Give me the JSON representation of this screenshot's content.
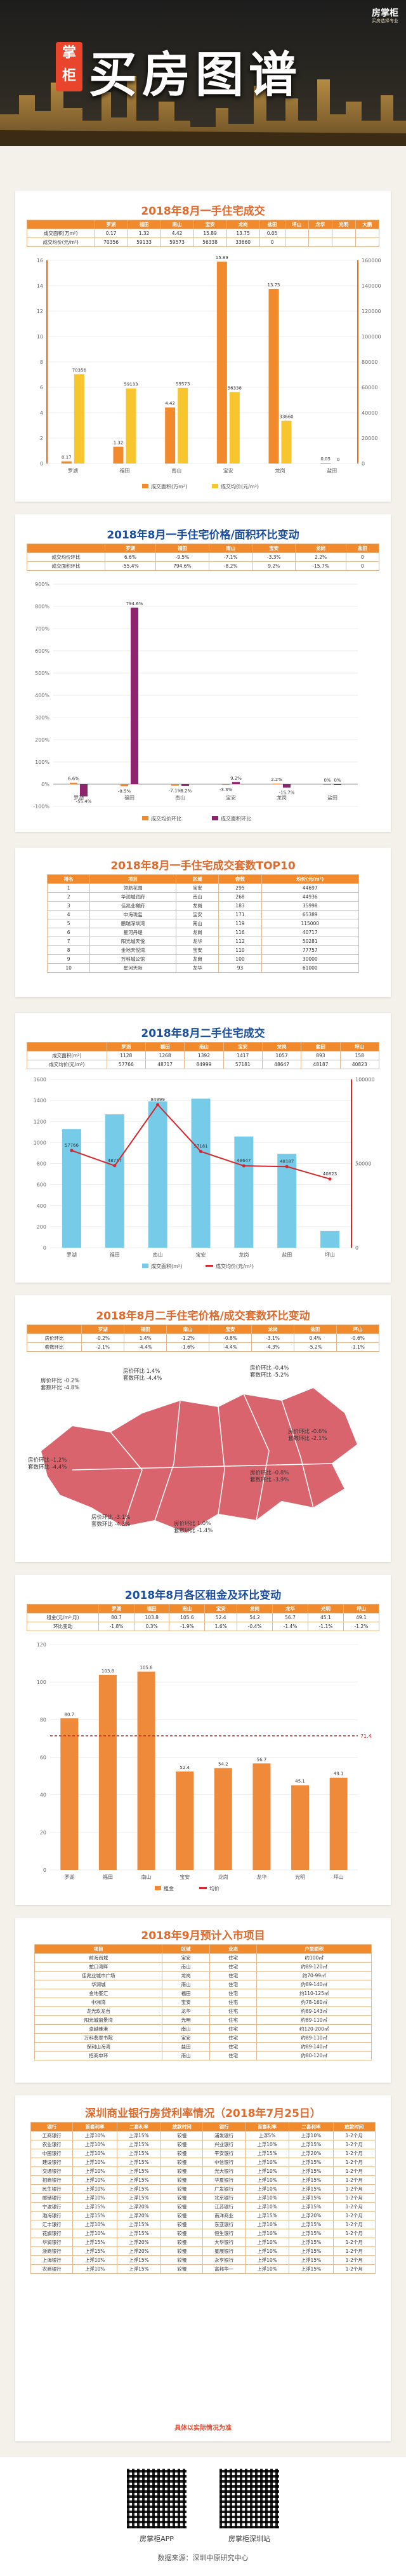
{
  "header": {
    "brand": "房掌柜",
    "tagline": "买房选择专业",
    "seal": "掌柜",
    "title": "买房图谱"
  },
  "s1": {
    "title": "2018年8月一手住宅成交",
    "columns": [
      "",
      "罗湖",
      "福田",
      "南山",
      "宝安",
      "龙岗",
      "盐田",
      "坪山",
      "龙华",
      "光明",
      "大鹏"
    ],
    "rows": [
      [
        "成交面积(万m²)",
        "0.17",
        "1.32",
        "4.42",
        "15.89",
        "13.75",
        "0.05",
        "",
        "",
        "",
        ""
      ],
      [
        "成交均价(元/m²)",
        "70356",
        "59133",
        "59573",
        "56338",
        "33660",
        "0",
        "",
        "",
        "",
        ""
      ]
    ]
  },
  "chart_data": [
    {
      "type": "bar",
      "title": "2018年8月一手住宅成交",
      "categories": [
        "罗湖",
        "福田",
        "南山",
        "宝安",
        "龙岗",
        "盐田"
      ],
      "series": [
        {
          "name": "成交面积(万m²)",
          "values": [
            0.17,
            1.32,
            4.42,
            15.89,
            13.75,
            0.05
          ]
        },
        {
          "name": "成交均价(元/m²)",
          "values": [
            70356,
            59133,
            59573,
            56338,
            33660,
            0
          ]
        }
      ],
      "ylim_left": [
        0,
        16
      ],
      "ylim_right": [
        0,
        160000
      ],
      "legend": "bottom"
    },
    {
      "type": "bar",
      "title": "2018年8月一手住宅价格/面积环比变动",
      "categories": [
        "罗湖",
        "福田",
        "南山",
        "宝安",
        "龙岗",
        "盐田"
      ],
      "series": [
        {
          "name": "成交均价环比",
          "values": [
            6.6,
            -9.5,
            -7.1,
            -3.3,
            2.2,
            0
          ]
        },
        {
          "name": "成交面积环比",
          "values": [
            -55.4,
            794.6,
            -8.2,
            9.2,
            -15.7,
            0
          ]
        }
      ],
      "ylim": [
        -100,
        900
      ],
      "legend": "bottom"
    },
    {
      "type": "bar",
      "title": "2018年8月二手住宅成交",
      "categories": [
        "罗湖",
        "福田",
        "南山",
        "宝安",
        "龙岗",
        "盐田",
        "坪山"
      ],
      "series": [
        {
          "name": "成交面积(m²)",
          "values": [
            1128,
            1268,
            1392,
            1417,
            1057,
            893,
            158
          ]
        },
        {
          "name": "成交均价(元/m²)",
          "values": [
            57766,
            48717,
            84999,
            57181,
            48647,
            48187,
            40823
          ]
        }
      ],
      "ylim_left": [
        0,
        1600
      ],
      "ylim_right": [
        0,
        100000
      ],
      "legend": "bottom"
    },
    {
      "type": "bar",
      "title": "2018年8月各区租金及环比变动",
      "categories": [
        "罗湖",
        "福田",
        "南山",
        "宝安",
        "龙岗",
        "龙华",
        "光明",
        "坪山"
      ],
      "series": [
        {
          "name": "租金(元/m²·月)",
          "values": [
            80.7,
            103.8,
            105.6,
            52.4,
            54.2,
            56.7,
            45.1,
            49.1
          ]
        },
        {
          "name": "均价",
          "values": [
            71.4,
            71.4,
            71.4,
            71.4,
            71.4,
            71.4,
            71.4,
            71.4
          ]
        }
      ],
      "ylim": [
        0,
        120
      ],
      "legend": "bottom"
    }
  ],
  "s1legend": [
    "成交面积(万m²)",
    "成交均价(元/m²)"
  ],
  "s2": {
    "title": "2018年8月一手住宅价格/面积环比变动",
    "rows": [
      [
        "成交均价环比",
        "6.6%",
        "-9.5%",
        "-7.1%",
        "-3.3%",
        "2.2%",
        "0"
      ],
      [
        "成交面积环比",
        "-55.4%",
        "794.6%",
        "-8.2%",
        "9.2%",
        "-15.7%",
        "0"
      ]
    ],
    "labels": [
      "6.6%",
      "-55.4%",
      "794.6%",
      "-9.5%",
      "-7.1%",
      "-8.2%",
      "-3.3%",
      "9.2%",
      "2.2%",
      "-15.7%"
    ],
    "legend": [
      "成交均价环比",
      "成交面积环比"
    ]
  },
  "s3": {
    "title": "2018年8月一手住宅成交套数TOP10",
    "head": [
      "排名",
      "项目",
      "区域",
      "套数",
      "均价(元/m²)"
    ],
    "rows": [
      [
        "1",
        "领航花园",
        "宝安",
        "295",
        "44697"
      ],
      [
        "2",
        "华润城润府",
        "南山",
        "268",
        "44936"
      ],
      [
        "3",
        "佳兆业樾府",
        "龙岗",
        "183",
        "35998"
      ],
      [
        "4",
        "中海珑玺",
        "宝安",
        "171",
        "65389"
      ],
      [
        "5",
        "鹏瑞深圳湾",
        "南山",
        "119",
        "115000"
      ],
      [
        "6",
        "星河丹堤",
        "龙岗",
        "116",
        "40717"
      ],
      [
        "7",
        "阳光城天悦",
        "龙华",
        "112",
        "50281"
      ],
      [
        "8",
        "金地天悦湾",
        "宝安",
        "110",
        "77757"
      ],
      [
        "9",
        "万科城公馆",
        "龙岗",
        "100",
        "30000"
      ],
      [
        "10",
        "星河天际",
        "龙华",
        "93",
        "61000"
      ]
    ]
  },
  "s4": {
    "title": "2018年8月二手住宅成交",
    "rows": [
      [
        "成交面积(m²)",
        "1128",
        "1268",
        "1392",
        "1417",
        "1057",
        "893",
        "158"
      ],
      [
        "成交均价(元/m²)",
        "57766",
        "48717",
        "84999",
        "57181",
        "48647",
        "48187",
        "40823"
      ]
    ],
    "labels": [
      "57766",
      "48717",
      "84999",
      "57181",
      "48647",
      "48187",
      "40823"
    ],
    "legend": [
      "成交面积(m²)",
      "成交均价(元/m²)"
    ]
  },
  "s5": {
    "title": "2018年8月二手住宅价格/成交套数环比变动",
    "rows": [
      [
        "房价环比",
        "-0.2%",
        "1.4%",
        "-1.2%",
        "-0.8%",
        "-3.1%",
        "0.4%",
        "-0.6%"
      ],
      [
        "套数环比",
        "-2.1%",
        "-4.4%",
        "-1.6%",
        "-4.4%",
        "-4.3%",
        "-5.2%",
        "-1.1%"
      ]
    ],
    "callouts": [
      "房价环比 -0.2%\n套数环比 -4.8%",
      "房价环比 1.4%\n套数环比 -4.4%",
      "房价环比 -0.4%\n套数环比 -5.2%",
      "房价环比 -1.2%\n套数环比 -4.4%",
      "房价环比 -0.8%\n套数环比 -3.9%",
      "房价环比 -0.6%\n套数环比 -2.1%",
      "房价环比 -3.1%\n套数环比 -4.3%",
      "房价环比 1.0%\n套数环比 -1.4%"
    ]
  },
  "s6": {
    "title": "2018年8月各区租金及环比变动",
    "rows": [
      [
        "租金(元/m²·月)",
        "80.7",
        "103.8",
        "105.6",
        "52.4",
        "54.2",
        "56.7",
        "45.1",
        "49.1"
      ],
      [
        "环比变动",
        "-1.8%",
        "0.3%",
        "-1.9%",
        "1.6%",
        "-0.4%",
        "-1.4%",
        "-1.1%",
        "-1.2%"
      ]
    ],
    "avg": "71.4",
    "legend": [
      "租金",
      "均价"
    ]
  },
  "s7": {
    "title": "2018年9月预计入市项目",
    "head": [
      "项目",
      "区域",
      "业态",
      "户型面积"
    ],
    "rows": [
      [
        "前海尚城",
        "宝安",
        "住宅",
        "约100㎡"
      ],
      [
        "蛇口湾畔",
        "南山",
        "住宅",
        "约89-120㎡"
      ],
      [
        "佳兆业城市广场",
        "龙岗",
        "住宅",
        "约70-99㎡"
      ],
      [
        "华润城",
        "南山",
        "住宅",
        "约89-140㎡"
      ],
      [
        "金地峯汇",
        "福田",
        "住宅",
        "约110-125㎡"
      ],
      [
        "中洲湾",
        "宝安",
        "住宅",
        "约78-160㎡"
      ],
      [
        "龙光玖龙台",
        "龙华",
        "住宅",
        "约89-143㎡"
      ],
      [
        "阳光城丽景湾",
        "光明",
        "住宅",
        "约89-110㎡"
      ],
      [
        "卓越维港",
        "南山",
        "住宅",
        "约120-200㎡"
      ],
      [
        "万科翡翠书院",
        "宝安",
        "住宅",
        "约89-110㎡"
      ],
      [
        "保利山海湾",
        "盐田",
        "住宅",
        "约89-140㎡"
      ],
      [
        "招商中环",
        "南山",
        "住宅",
        "约80-120㎡"
      ]
    ]
  },
  "s8": {
    "title": "深圳商业银行房贷利率情况（2018年7月25日）",
    "head": [
      "银行",
      "首套利率",
      "二套利率",
      "放款时间",
      "银行",
      "首套利率",
      "二套利率",
      "放款时间"
    ],
    "rows": [
      [
        "工商银行",
        "上浮10%",
        "上浮15%",
        "较慢",
        "浦发银行",
        "上浮5%",
        "上浮10%",
        "1-2个月"
      ],
      [
        "农业银行",
        "上浮10%",
        "上浮15%",
        "较慢",
        "兴业银行",
        "上浮10%",
        "上浮15%",
        "1-2个月"
      ],
      [
        "中国银行",
        "上浮10%",
        "上浮15%",
        "较慢",
        "平安银行",
        "上浮15%",
        "上浮20%",
        "1-2个月"
      ],
      [
        "建设银行",
        "上浮10%",
        "上浮15%",
        "较慢",
        "中信银行",
        "上浮10%",
        "上浮15%",
        "1-2个月"
      ],
      [
        "交通银行",
        "上浮10%",
        "上浮15%",
        "较慢",
        "光大银行",
        "上浮10%",
        "上浮15%",
        "1-2个月"
      ],
      [
        "招商银行",
        "上浮10%",
        "上浮15%",
        "较慢",
        "华夏银行",
        "上浮10%",
        "上浮15%",
        "1-2个月"
      ],
      [
        "民生银行",
        "上浮10%",
        "上浮15%",
        "较慢",
        "广发银行",
        "上浮10%",
        "上浮15%",
        "1-2个月"
      ],
      [
        "邮储银行",
        "上浮10%",
        "上浮15%",
        "较慢",
        "北京银行",
        "上浮10%",
        "上浮15%",
        "1-2个月"
      ],
      [
        "宁波银行",
        "上浮15%",
        "上浮20%",
        "较慢",
        "江苏银行",
        "上浮10%",
        "上浮15%",
        "1-2个月"
      ],
      [
        "渤海银行",
        "上浮15%",
        "上浮20%",
        "较慢",
        "南洋商业",
        "上浮15%",
        "上浮20%",
        "1-2个月"
      ],
      [
        "汇丰银行",
        "上浮10%",
        "上浮15%",
        "较慢",
        "东亚银行",
        "上浮10%",
        "上浮15%",
        "1-2个月"
      ],
      [
        "花旗银行",
        "上浮10%",
        "上浮15%",
        "较慢",
        "恒生银行",
        "上浮10%",
        "上浮15%",
        "1-2个月"
      ],
      [
        "华润银行",
        "上浮15%",
        "上浮20%",
        "较慢",
        "大华银行",
        "上浮10%",
        "上浮15%",
        "1-2个月"
      ],
      [
        "浙商银行",
        "上浮15%",
        "上浮20%",
        "较慢",
        "星展银行",
        "上浮10%",
        "上浮15%",
        "1-2个月"
      ],
      [
        "上海银行",
        "上浮10%",
        "上浮15%",
        "较慢",
        "永亨银行",
        "上浮10%",
        "上浮15%",
        "1-2个月"
      ],
      [
        "农商银行",
        "上浮10%",
        "上浮15%",
        "较慢",
        "富邦华一",
        "上浮10%",
        "上浮15%",
        "1-2个月"
      ]
    ],
    "note": "具体以实际情况为准"
  },
  "footer": {
    "qr1": "房掌柜APP",
    "qr2": "房掌柜深圳站",
    "source": "数据来源：深圳中原研究中心"
  }
}
